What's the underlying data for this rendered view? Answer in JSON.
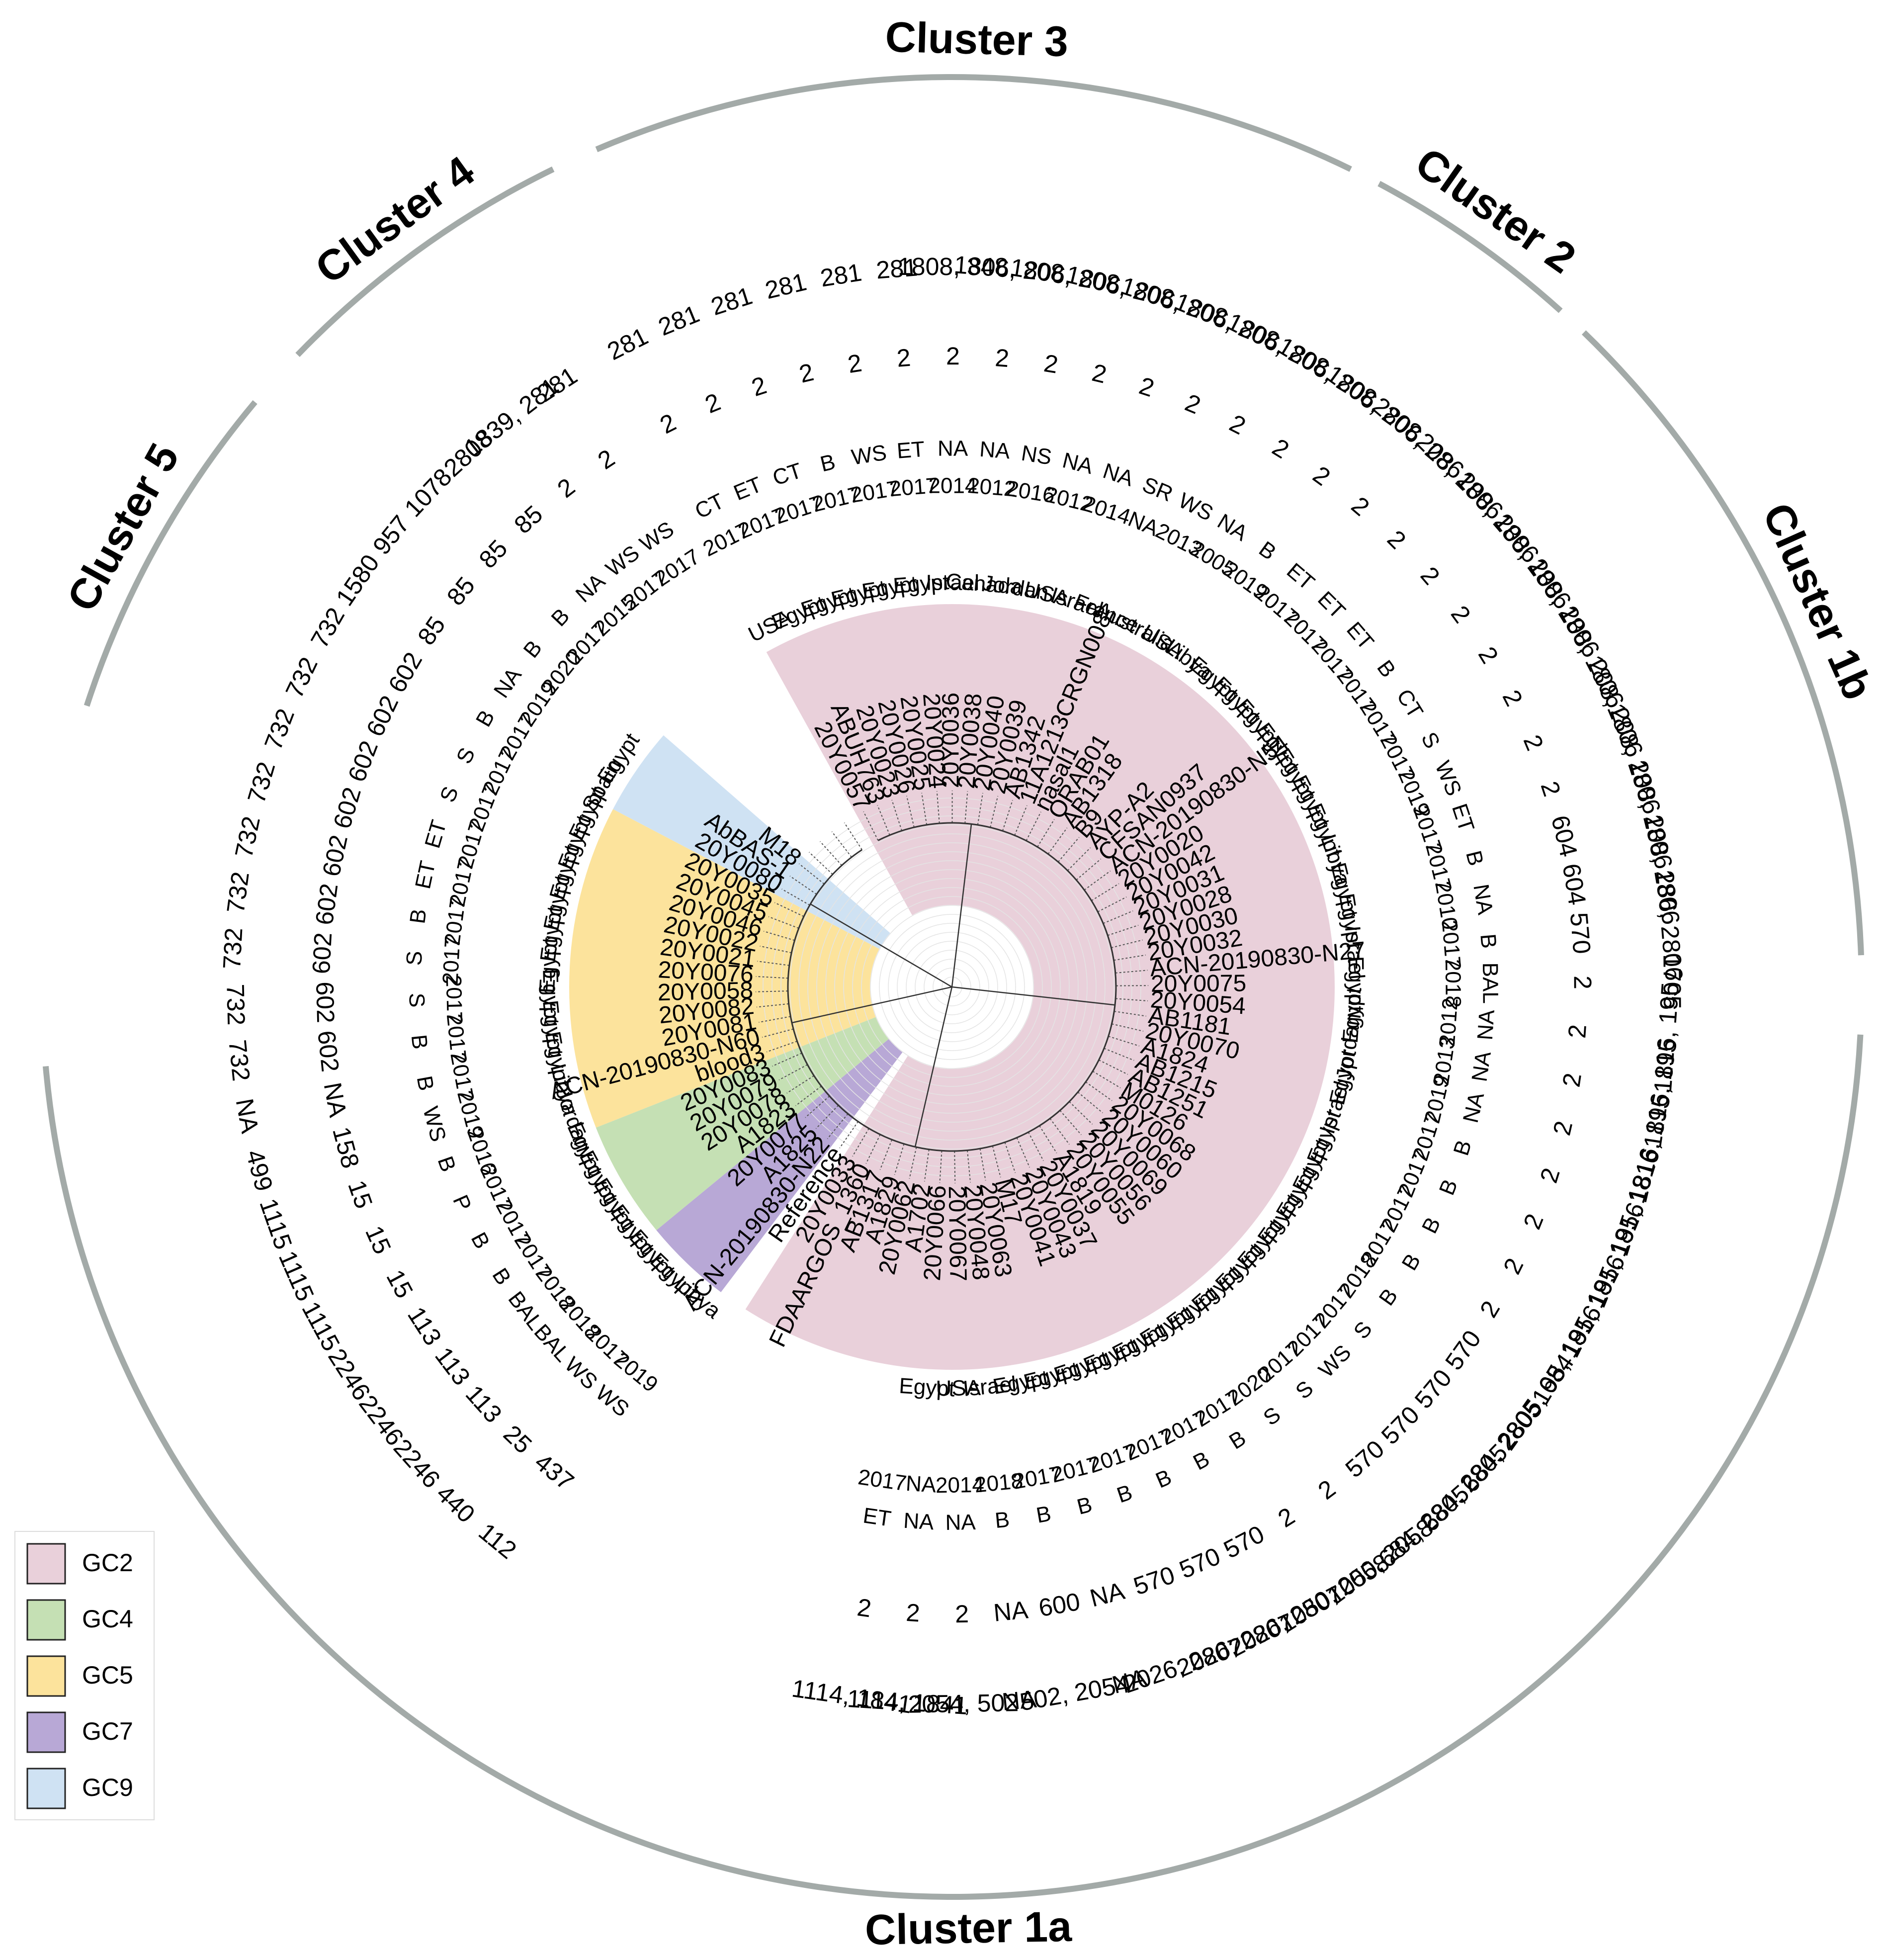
{
  "title": "",
  "clusters": [
    {
      "label": "Cluster 1a"
    },
    {
      "label": "Cluster 1b"
    },
    {
      "label": "Cluster 2"
    },
    {
      "label": "Cluster 3"
    },
    {
      "label": "Cluster 4"
    },
    {
      "label": "Cluster 5"
    }
  ],
  "legend": [
    {
      "label": "GC2",
      "color": "#E9D0DA"
    },
    {
      "label": "GC4",
      "color": "#C5E0B4"
    },
    {
      "label": "GC5",
      "color": "#FCE39C"
    },
    {
      "label": "GC7",
      "color": "#B8A8D6"
    },
    {
      "label": "GC9",
      "color": "#CFE2F3"
    }
  ],
  "isolates": [
    {
      "id": "20Y0057",
      "gc": "GC2",
      "country": "USA",
      "year": "2017",
      "source": "CT",
      "snp": "2",
      "st": "281"
    },
    {
      "id": "ABUH763",
      "gc": "GC2",
      "country": "Egypt",
      "year": "2017",
      "source": "ET",
      "snp": "2",
      "st": "281"
    },
    {
      "id": "20Y0023",
      "gc": "GC2",
      "country": "Egypt",
      "year": "2017",
      "source": "CT",
      "snp": "2",
      "st": "281"
    },
    {
      "id": "20Y0026",
      "gc": "GC2",
      "country": "Egypt",
      "year": "2017",
      "source": "B",
      "snp": "2",
      "st": "281"
    },
    {
      "id": "20Y0025",
      "gc": "GC2",
      "country": "Egypt",
      "year": "2017",
      "source": "WS",
      "snp": "2",
      "st": "281"
    },
    {
      "id": "20Y0024",
      "gc": "GC2",
      "country": "Egypt",
      "year": "2017",
      "source": "ET",
      "snp": "2",
      "st": "281"
    },
    {
      "id": "20Y0036",
      "gc": "GC2",
      "country": "Israel",
      "year": "2014",
      "source": "NA",
      "snp": "2",
      "st": "1808, 348"
    },
    {
      "id": "20Y0038",
      "gc": "GC2",
      "country": "Canada",
      "year": "2012",
      "source": "NA",
      "snp": "2",
      "st": "1806, 208"
    },
    {
      "id": "20Y0040",
      "gc": "GC2",
      "country": "Jordan",
      "year": "2016",
      "source": "NS",
      "snp": "2",
      "st": "1806, 208"
    },
    {
      "id": "20Y0039",
      "gc": "GC2",
      "country": "USA",
      "year": "2012",
      "source": "NA",
      "snp": "2",
      "st": "1806, 208"
    },
    {
      "id": "AB1342",
      "gc": "GC2",
      "country": "Israel",
      "year": "2014",
      "source": "NA",
      "snp": "2",
      "st": "1806, 208"
    },
    {
      "id": "11A1213CRGN008",
      "gc": "GC2",
      "country": "France",
      "year": "NA",
      "source": "SR",
      "snp": "2",
      "st": "1806, 208"
    },
    {
      "id": "nasal1",
      "gc": "GC2",
      "country": "Australia",
      "year": "2013",
      "source": "WS",
      "snp": "2",
      "st": "1806, 208"
    },
    {
      "id": "ORAB01",
      "gc": "GC2",
      "country": "USA",
      "year": "2005",
      "source": "NA",
      "snp": "2",
      "st": "1806, 208"
    },
    {
      "id": "AB1318",
      "gc": "GC2",
      "country": "Libya",
      "year": "2019",
      "source": "B",
      "snp": "2",
      "st": "1806, 208"
    },
    {
      "id": "B9",
      "gc": "GC2",
      "country": "Egypt",
      "year": "2017",
      "source": "ET",
      "snp": "2",
      "st": "2806, 286"
    },
    {
      "id": "AYP-A2",
      "gc": "GC2",
      "country": "Egypt",
      "year": "2017",
      "source": "ET",
      "snp": "2",
      "st": "208, 1806"
    },
    {
      "id": "CFSAN0937",
      "gc": "GC2",
      "country": "Egypt",
      "year": "2017",
      "source": "ET",
      "snp": "2",
      "st": "208, 1806"
    },
    {
      "id": "ACN-20190830-N54",
      "gc": "GC2",
      "country": "Egypt",
      "year": "2017",
      "source": "B",
      "snp": "2",
      "st": "208, 1806"
    },
    {
      "id": "20Y0020",
      "gc": "GC2",
      "country": "Egypt",
      "year": "2017",
      "source": "CT",
      "snp": "2",
      "st": "208, 1806"
    },
    {
      "id": "20Y0042",
      "gc": "GC2",
      "country": "Egypt",
      "year": "2017",
      "source": "S",
      "snp": "2",
      "st": "208, 1806"
    },
    {
      "id": "20Y0031",
      "gc": "GC2",
      "country": "Egypt",
      "year": "2019",
      "source": "WS",
      "snp": "2",
      "st": "208,1806"
    },
    {
      "id": "20Y0028",
      "gc": "GC2",
      "country": "Libya",
      "year": "2017",
      "source": "ET",
      "snp": "2",
      "st": "208, 1806"
    },
    {
      "id": "20Y0030",
      "gc": "GC2",
      "country": "Egypt",
      "year": "2017",
      "source": "B",
      "snp": "604",
      "st": "208, 1806"
    },
    {
      "id": "20Y0032",
      "gc": "GC2",
      "country": "Egypt",
      "year": "2010",
      "source": "NA",
      "snp": "604",
      "st": "208, 1806"
    },
    {
      "id": "ACN-20190830-N27",
      "gc": "GC2",
      "country": "Israel",
      "year": "2017",
      "source": "B",
      "snp": "570",
      "st": "286, 2806"
    },
    {
      "id": "20Y0075",
      "gc": "GC2",
      "country": "Egypt",
      "year": "2018",
      "source": "BAL",
      "snp": "2",
      "st": "1705"
    },
    {
      "id": "20Y0054",
      "gc": "GC2",
      "country": "Egypt",
      "year": "2012",
      "source": "NA",
      "snp": "2",
      "st": "1816, 195"
    },
    {
      "id": "AB1181",
      "gc": "GC2",
      "country": "Jordan",
      "year": "2013",
      "source": "NA",
      "snp": "2",
      "st": "1816, 195"
    },
    {
      "id": "20Y0070",
      "gc": "GC2",
      "country": "Egypt",
      "year": "2019",
      "source": "NA",
      "snp": "2",
      "st": "1816, 195"
    },
    {
      "id": "A1824",
      "gc": "GC2",
      "country": "Israel",
      "year": "2017",
      "source": "B",
      "snp": "2",
      "st": "195, 1816"
    },
    {
      "id": "AB1215",
      "gc": "GC2",
      "country": "Egypt",
      "year": "2017",
      "source": "B",
      "snp": "2",
      "st": "195, 1816"
    },
    {
      "id": "AB1251",
      "gc": "GC2",
      "country": "Egypt",
      "year": "2017",
      "source": "B",
      "snp": "2",
      "st": "195, 1816"
    },
    {
      "id": "M0126",
      "gc": "GC2",
      "country": "Egypt",
      "year": "2017",
      "source": "B",
      "snp": "2",
      "st": "195, 1816"
    },
    {
      "id": "20Y0068",
      "gc": "GC2",
      "country": "Egypt",
      "year": "2018",
      "source": "B",
      "snp": "570",
      "st": "2805, 684"
    },
    {
      "id": "20Y0060",
      "gc": "GC2",
      "country": "Egypt",
      "year": "2017",
      "source": "S",
      "snp": "570",
      "st": "684, 2805"
    },
    {
      "id": "20Y0069",
      "gc": "GC2",
      "country": "Egypt",
      "year": "2017",
      "source": "WS",
      "snp": "570",
      "st": "684, 2805"
    },
    {
      "id": "20Y0056",
      "gc": "GC2",
      "country": "Egypt",
      "year": "2017",
      "source": "S",
      "snp": "570",
      "st": "684, 2805"
    },
    {
      "id": "20Y0055",
      "gc": "GC2",
      "country": "Egypt",
      "year": "2020",
      "source": "S",
      "snp": "2",
      "st": "1050, 2058"
    },
    {
      "id": "A1819",
      "gc": "GC2",
      "country": "Egypt",
      "year": "2017",
      "source": "B",
      "snp": "2",
      "st": "1050, 2058"
    },
    {
      "id": "20Y0037",
      "gc": "GC2",
      "country": "Egypt",
      "year": "2017",
      "source": "B",
      "snp": "570",
      "st": "2026, 2807"
    },
    {
      "id": "20Y0043",
      "gc": "GC2",
      "country": "Egypt",
      "year": "2017",
      "source": "B",
      "snp": "570",
      "st": "2026, 2807"
    },
    {
      "id": "20Y0041",
      "gc": "GC2",
      "country": "Egypt",
      "year": "2017",
      "source": "B",
      "snp": "570",
      "st": "2026, 2807"
    },
    {
      "id": "M17",
      "gc": "GC2",
      "country": "Egypt",
      "year": "2017",
      "source": "B",
      "snp": "NA",
      "st": "NA"
    },
    {
      "id": "20Y0063",
      "gc": "GC2",
      "country": "Egypt",
      "year": "2017",
      "source": "B",
      "snp": "600",
      "st": "502, 2054"
    },
    {
      "id": "20Y0048",
      "gc": "GC2",
      "country": "Israel",
      "year": "2018",
      "source": "B",
      "snp": "NA",
      "st": "NA"
    },
    {
      "id": "20Y0067",
      "gc": "GC2",
      "country": "USA",
      "year": "2014",
      "source": "NA",
      "snp": "2",
      "st": "2054, 502"
    },
    {
      "id": "20Y0066",
      "gc": "GC2",
      "country": "Egypt",
      "year": "NA",
      "source": "NA",
      "snp": "2",
      "st": "1114, 1841"
    },
    {
      "id": "A1702",
      "gc": "GC2",
      "country": "",
      "year": "2017",
      "source": "ET",
      "snp": "2",
      "st": "1114, 1841"
    },
    {
      "id": "20Y0062",
      "gc": "GC2",
      "country": "",
      "year": "",
      "source": "",
      "snp": "",
      "st": ""
    },
    {
      "id": "A1829",
      "gc": "GC2",
      "country": "",
      "year": "",
      "source": "",
      "snp": "",
      "st": ""
    },
    {
      "id": "AB1317",
      "gc": "GC2",
      "country": "",
      "year": "",
      "source": "",
      "snp": "",
      "st": ""
    },
    {
      "id": "FDAARGOS_1360",
      "gc": "GC2",
      "country": "",
      "year": "",
      "source": "",
      "snp": "",
      "st": ""
    },
    {
      "id": "20Y0033",
      "gc": "GC2",
      "country": "",
      "year": "",
      "source": "",
      "snp": "",
      "st": ""
    },
    {
      "id": "Reference",
      "gc": "",
      "country": "",
      "year": "",
      "source": "",
      "snp": "",
      "st": ""
    },
    {
      "id": "ACN-20190830-N22",
      "gc": "GC7",
      "country": "Libya",
      "year": "2019",
      "source": "WS",
      "snp": "437",
      "st": "112"
    },
    {
      "id": "A1825",
      "gc": "GC7",
      "country": "Egypt",
      "year": "2017",
      "source": "WS",
      "snp": "25",
      "st": "440"
    },
    {
      "id": "20Y0077",
      "gc": "GC7",
      "country": "Egypt",
      "year": "2018",
      "source": "BAL",
      "snp": "113",
      "st": "2246"
    },
    {
      "id": "A1823",
      "gc": "GC4",
      "country": "Egypt",
      "year": "2018",
      "source": "BAL",
      "snp": "113",
      "st": "2246"
    },
    {
      "id": "20Y0078",
      "gc": "GC4",
      "country": "Egypt",
      "year": "2017",
      "source": "B",
      "snp": "113",
      "st": "2246"
    },
    {
      "id": "20Y0079",
      "gc": "GC4",
      "country": "Egypt",
      "year": "2017",
      "source": "B",
      "snp": "15",
      "st": "1115"
    },
    {
      "id": "20Y0083",
      "gc": "GC4",
      "country": "Egypt",
      "year": "2017",
      "source": "P",
      "snp": "15",
      "st": "1115"
    },
    {
      "id": "blood3",
      "gc": "GC5",
      "country": "Jordan",
      "year": "2016",
      "source": "B",
      "snp": "15",
      "st": "1115"
    },
    {
      "id": "ACN-20190830-N60",
      "gc": "GC5",
      "country": "Libya",
      "year": "2019",
      "source": "WS",
      "snp": "158",
      "st": "499"
    },
    {
      "id": "20Y0081",
      "gc": "GC5",
      "country": "Egypt",
      "year": "2017",
      "source": "B",
      "snp": "NA",
      "st": "NA"
    },
    {
      "id": "20Y0082",
      "gc": "GC5",
      "country": "Egypt",
      "year": "2017",
      "source": "B",
      "snp": "602",
      "st": "732"
    },
    {
      "id": "20Y0058",
      "gc": "GC5",
      "country": "Egypt",
      "year": "2017",
      "source": "S",
      "snp": "602",
      "st": "732"
    },
    {
      "id": "20Y0076",
      "gc": "GC5",
      "country": "Egypt",
      "year": "2017",
      "source": "S",
      "snp": "602",
      "st": "732"
    },
    {
      "id": "20Y0021",
      "gc": "GC5",
      "country": "Egypt",
      "year": "2017",
      "source": "B",
      "snp": "602",
      "st": "732"
    },
    {
      "id": "20Y0022",
      "gc": "GC5",
      "country": "Egypt",
      "year": "2017",
      "source": "ET",
      "snp": "602",
      "st": "732"
    },
    {
      "id": "20Y0046",
      "gc": "GC5",
      "country": "Egypt",
      "year": "2017",
      "source": "ET",
      "snp": "602",
      "st": "732"
    },
    {
      "id": "20Y0045",
      "gc": "GC5",
      "country": "Egypt",
      "year": "2017",
      "source": "S",
      "snp": "602",
      "st": "732"
    },
    {
      "id": "20Y0035",
      "gc": "GC5",
      "country": "Egypt",
      "year": "2017",
      "source": "S",
      "snp": "602",
      "st": "732"
    },
    {
      "id": "20Y0080",
      "gc": "GC9",
      "country": "Spain",
      "year": "2017",
      "source": "B",
      "snp": "602",
      "st": "732"
    },
    {
      "id": "AbBAS-1",
      "gc": "GC9",
      "country": "Egypt",
      "year": "2019",
      "source": "NA",
      "snp": "85",
      "st": "1580"
    },
    {
      "id": "M18",
      "gc": "GC9",
      "country": "",
      "year": "2020",
      "source": "B",
      "snp": "85",
      "st": "957"
    },
    {
      "id": "",
      "gc": "",
      "country": "",
      "year": "2017",
      "source": "B",
      "snp": "85",
      "st": "1078"
    },
    {
      "id": "",
      "gc": "",
      "country": "",
      "year": "2015",
      "source": "NA",
      "snp": "85",
      "st": "2808"
    },
    {
      "id": "",
      "gc": "",
      "country": "",
      "year": "2017",
      "source": "WS",
      "snp": "2",
      "st": "1839, 281"
    },
    {
      "id": "",
      "gc": "",
      "country": "",
      "year": "2017",
      "source": "WS",
      "snp": "2",
      "st": "281"
    }
  ]
}
